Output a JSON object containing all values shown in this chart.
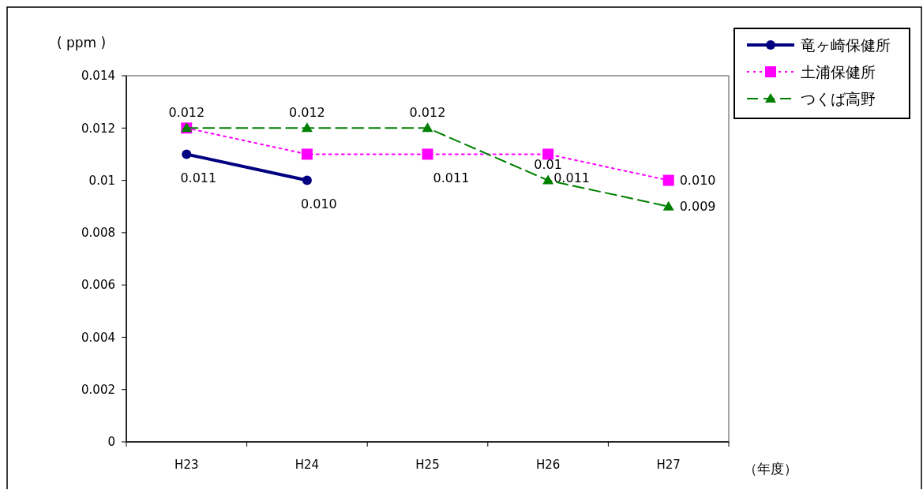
{
  "chart_data": {
    "type": "line",
    "ylabel": "( ppm )",
    "xlabel": "（年度）",
    "categories": [
      "H23",
      "H24",
      "H25",
      "H26",
      "H27"
    ],
    "series": [
      {
        "name": "竜ヶ崎保健所",
        "color": "#000080",
        "line_style": "solid",
        "marker": "circle",
        "values": [
          0.011,
          0.01,
          null,
          null,
          null
        ],
        "value_labels": [
          "0.011",
          "0.010",
          null,
          null,
          null
        ]
      },
      {
        "name": "土浦保健所",
        "color": "#ff00ff",
        "line_style": "dotted",
        "marker": "square",
        "values": [
          0.012,
          0.011,
          0.011,
          0.011,
          0.01
        ],
        "value_labels": [
          null,
          null,
          "0.011",
          "0.011",
          "0.010"
        ]
      },
      {
        "name": "つくば高野",
        "color": "#008000",
        "line_style": "dashed",
        "marker": "triangle",
        "values": [
          0.012,
          0.012,
          0.012,
          0.01,
          0.009
        ],
        "value_labels": [
          "0.012",
          "0.012",
          "0.012",
          "0.01",
          "0.009"
        ]
      }
    ],
    "ylim": [
      0,
      0.014
    ],
    "yticks": [
      0,
      0.002,
      0.004,
      0.006,
      0.008,
      0.01,
      0.012,
      0.014
    ],
    "grid": false,
    "legend": "top right"
  }
}
